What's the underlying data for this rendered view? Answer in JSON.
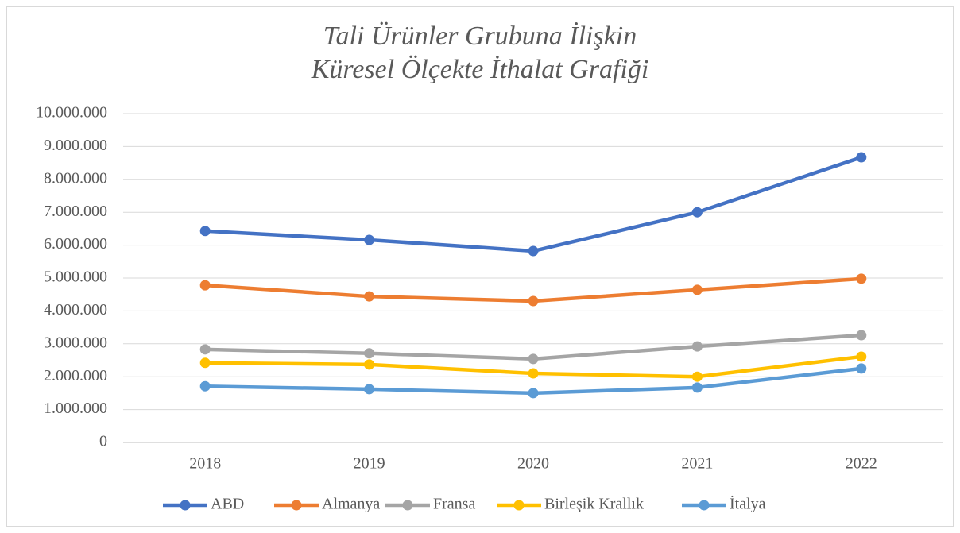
{
  "chart_data": {
    "type": "line",
    "title": [
      "Tali Ürünler Grubuna İlişkin",
      "Küresel Ölçekte İthalat Grafiği"
    ],
    "categories": [
      "2018",
      "2019",
      "2020",
      "2021",
      "2022"
    ],
    "series": [
      {
        "name": "ABD",
        "color": "#4472c4",
        "values": [
          6430000,
          6160000,
          5820000,
          7000000,
          8670000
        ]
      },
      {
        "name": "Almanya",
        "color": "#ed7d31",
        "values": [
          4780000,
          4440000,
          4300000,
          4640000,
          4980000
        ]
      },
      {
        "name": "Fransa",
        "color": "#a5a5a5",
        "values": [
          2830000,
          2710000,
          2540000,
          2920000,
          3260000
        ]
      },
      {
        "name": "Birleşik Krallık",
        "color": "#ffc000",
        "values": [
          2420000,
          2370000,
          2100000,
          2000000,
          2610000
        ]
      },
      {
        "name": "İtalya",
        "color": "#5b9bd5",
        "values": [
          1710000,
          1620000,
          1500000,
          1670000,
          2250000
        ]
      }
    ],
    "ylim": [
      0,
      10000000
    ],
    "yticks": [
      0,
      {
        "value": 1000000,
        "label": "1.000.000"
      },
      {
        "value": 2000000,
        "label": "2.000.000"
      },
      {
        "value": 3000000,
        "label": "3.000.000"
      },
      {
        "value": 4000000,
        "label": "4.000.000"
      },
      {
        "value": 5000000,
        "label": "5.000.000"
      },
      {
        "value": 6000000,
        "label": "6.000.000"
      },
      {
        "value": 7000000,
        "label": "7.000.000"
      },
      {
        "value": 8000000,
        "label": "8.000.000"
      },
      {
        "value": 9000000,
        "label": "9.000.000"
      },
      {
        "value": 10000000,
        "label": "10.000.000"
      }
    ],
    "grid": true,
    "legend": "bottom"
  }
}
